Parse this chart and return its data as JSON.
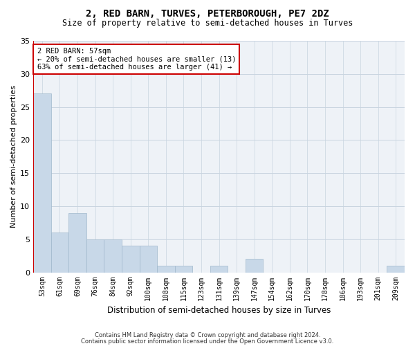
{
  "title": "2, RED BARN, TURVES, PETERBOROUGH, PE7 2DZ",
  "subtitle": "Size of property relative to semi-detached houses in Turves",
  "xlabel": "Distribution of semi-detached houses by size in Turves",
  "ylabel": "Number of semi-detached properties",
  "categories": [
    "53sqm",
    "61sqm",
    "69sqm",
    "76sqm",
    "84sqm",
    "92sqm",
    "100sqm",
    "108sqm",
    "115sqm",
    "123sqm",
    "131sqm",
    "139sqm",
    "147sqm",
    "154sqm",
    "162sqm",
    "170sqm",
    "178sqm",
    "186sqm",
    "193sqm",
    "201sqm",
    "209sqm"
  ],
  "values": [
    27,
    6,
    9,
    5,
    5,
    4,
    4,
    1,
    1,
    0,
    1,
    0,
    2,
    0,
    0,
    0,
    0,
    0,
    0,
    0,
    1
  ],
  "bar_color": "#c8d8e8",
  "bar_edge_color": "#a0b8cc",
  "subject_line_color": "#cc0000",
  "annotation_line1": "2 RED BARN: 57sqm",
  "annotation_line2": "← 20% of semi-detached houses are smaller (13)",
  "annotation_line3": "63% of semi-detached houses are larger (41) →",
  "annotation_box_color": "#ffffff",
  "annotation_box_edge_color": "#cc0000",
  "ylim": [
    0,
    35
  ],
  "yticks": [
    0,
    5,
    10,
    15,
    20,
    25,
    30,
    35
  ],
  "footer_line1": "Contains HM Land Registry data © Crown copyright and database right 2024.",
  "footer_line2": "Contains public sector information licensed under the Open Government Licence v3.0.",
  "bg_color": "#eef2f7",
  "grid_color": "#c8d4e0",
  "title_fontsize": 10,
  "subtitle_fontsize": 8.5,
  "ylabel_fontsize": 8,
  "xlabel_fontsize": 8.5,
  "tick_fontsize": 7,
  "annotation_fontsize": 7.5,
  "footer_fontsize": 6
}
